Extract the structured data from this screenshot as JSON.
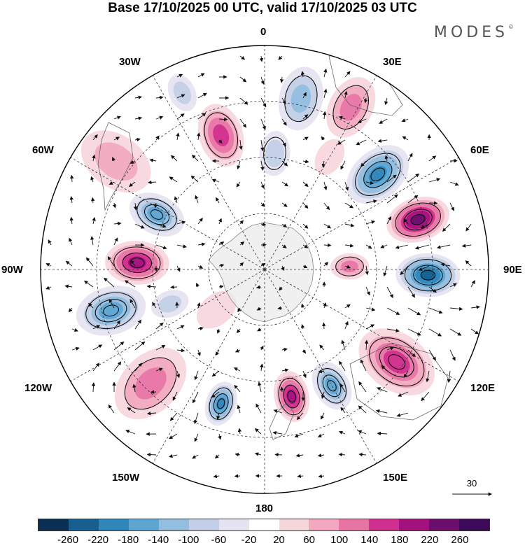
{
  "title": "Base 17/10/2025 00 UTC, valid 17/10/2025 03 UTC",
  "brand": "MODES",
  "brand_mark": "©",
  "longitude_labels": {
    "top": "0",
    "ne30": "30E",
    "ne60": "60E",
    "east": "90E",
    "se120": "120E",
    "se150": "150E",
    "bottom": "180",
    "sw150": "150W",
    "sw120": "120W",
    "west": "90W",
    "nw60": "60W",
    "nw30": "30W"
  },
  "vector_scale": {
    "value": "30"
  },
  "colorbar": {
    "colors": [
      "#0a2f52",
      "#175f8f",
      "#2f86bb",
      "#5da6d2",
      "#93bee0",
      "#c2cfe6",
      "#e4e3f0",
      "#ffffff",
      "#f7d6dc",
      "#f2a9c0",
      "#e874a6",
      "#cf2f8e",
      "#a2127f",
      "#6b0f6f",
      "#3d0a59"
    ],
    "ticks": [
      "-260",
      "-220",
      "-180",
      "-140",
      "-100",
      "-60",
      "-20",
      "20",
      "60",
      "100",
      "140",
      "180",
      "220",
      "260"
    ]
  },
  "anomalies": [
    {
      "lon": 12,
      "r": 0.78,
      "v": -120,
      "s": 0.1
    },
    {
      "lon": 5,
      "r": 0.52,
      "v": -95,
      "s": 0.07
    },
    {
      "lon": 28,
      "r": 0.82,
      "v": 120,
      "s": 0.1
    },
    {
      "lon": 30,
      "r": 0.58,
      "v": 45,
      "s": 0.06
    },
    {
      "lon": 50,
      "r": 0.66,
      "v": -180,
      "s": 0.11
    },
    {
      "lon": 72,
      "r": 0.72,
      "v": 240,
      "s": 0.1
    },
    {
      "lon": 92,
      "r": 0.73,
      "v": -250,
      "s": 0.1
    },
    {
      "lon": 88,
      "r": 0.38,
      "v": 130,
      "s": 0.06
    },
    {
      "lon": 125,
      "r": 0.72,
      "v": 175,
      "s": 0.13
    },
    {
      "lon": 150,
      "r": 0.6,
      "v": -165,
      "s": 0.08
    },
    {
      "lon": 168,
      "r": 0.58,
      "v": 210,
      "s": 0.08
    },
    {
      "lon": 198,
      "r": 0.63,
      "v": -180,
      "s": 0.07
    },
    {
      "lon": 225,
      "r": 0.72,
      "v": 130,
      "s": 0.13
    },
    {
      "lon": 255,
      "r": 0.71,
      "v": -150,
      "s": 0.11
    },
    {
      "lon": 250,
      "r": 0.45,
      "v": -85,
      "s": 0.06
    },
    {
      "lon": 273,
      "r": 0.57,
      "v": 215,
      "s": 0.1
    },
    {
      "lon": 297,
      "r": 0.54,
      "v": -175,
      "s": 0.09
    },
    {
      "lon": 306,
      "r": 0.82,
      "v": 60,
      "s": 0.12
    },
    {
      "lon": 342,
      "r": 0.63,
      "v": 140,
      "s": 0.1
    },
    {
      "lon": 335,
      "r": 0.87,
      "v": -60,
      "s": 0.06
    },
    {
      "lon": 230,
      "r": 0.28,
      "v": 40,
      "s": 0.07
    }
  ]
}
